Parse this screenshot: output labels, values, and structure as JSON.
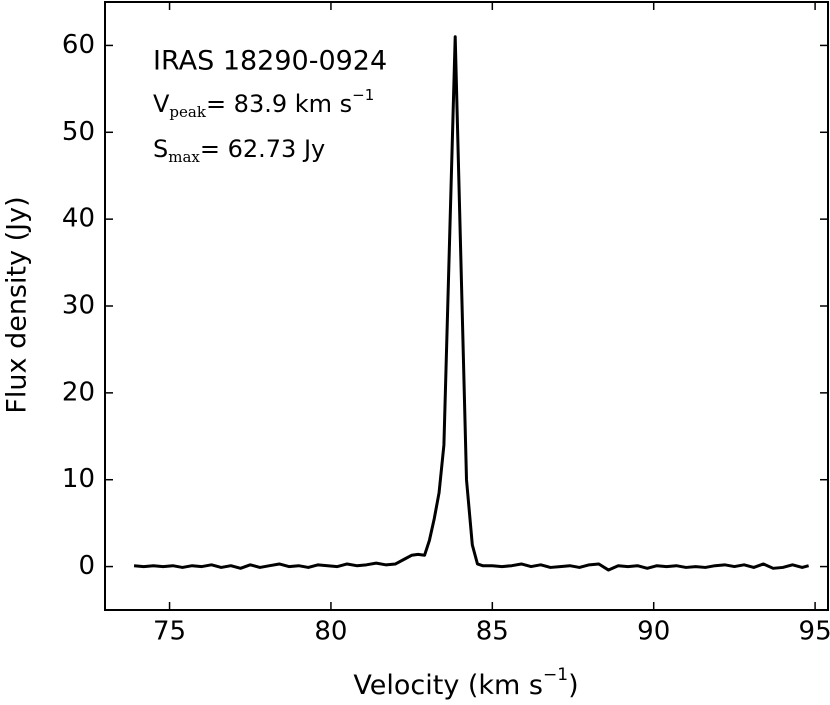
{
  "chart_data": {
    "type": "line",
    "annotations": {
      "source": "IRAS 18290-0924",
      "vpeak": {
        "symbol": "V",
        "sub": "peak",
        "text": "= 83.9 km s",
        "sup": "−1"
      },
      "smax": {
        "symbol": "S",
        "sub": "max",
        "text": "= 62.73 Jy"
      }
    },
    "xlabel": {
      "text": "Velocity (km s",
      "sup": "−1",
      "end": ")"
    },
    "ylabel": "Flux density (Jy)",
    "xlim": [
      73,
      95.4
    ],
    "ylim": [
      -5,
      65
    ],
    "xticks": [
      75,
      80,
      85,
      90,
      95
    ],
    "yticks": [
      0,
      10,
      20,
      30,
      40,
      50,
      60
    ],
    "grid": false,
    "series": [
      {
        "color": "#000000",
        "x": [
          73.9,
          74.2,
          74.5,
          74.8,
          75.1,
          75.4,
          75.7,
          76.0,
          76.3,
          76.6,
          76.9,
          77.2,
          77.5,
          77.8,
          78.1,
          78.4,
          78.7,
          79.0,
          79.3,
          79.6,
          79.9,
          80.2,
          80.5,
          80.8,
          81.1,
          81.4,
          81.7,
          82.0,
          82.3,
          82.5,
          82.7,
          82.9,
          83.05,
          83.2,
          83.35,
          83.5,
          83.85,
          84.2,
          84.38,
          84.54,
          84.7,
          85.0,
          85.3,
          85.6,
          85.9,
          86.2,
          86.5,
          86.8,
          87.1,
          87.4,
          87.7,
          88.0,
          88.3,
          88.6,
          88.9,
          89.2,
          89.5,
          89.8,
          90.1,
          90.4,
          90.7,
          91.0,
          91.3,
          91.6,
          91.9,
          92.2,
          92.5,
          92.8,
          93.1,
          93.4,
          93.7,
          94.0,
          94.3,
          94.6,
          94.8
        ],
        "values": [
          0.1,
          0.0,
          0.1,
          0.0,
          0.1,
          -0.1,
          0.1,
          0.0,
          0.2,
          -0.1,
          0.1,
          -0.2,
          0.2,
          -0.1,
          0.1,
          0.3,
          0.0,
          0.1,
          -0.1,
          0.2,
          0.1,
          0.0,
          0.3,
          0.1,
          0.2,
          0.4,
          0.2,
          0.3,
          0.9,
          1.3,
          1.4,
          1.3,
          3.0,
          5.5,
          8.5,
          14.0,
          61.0,
          10.0,
          2.5,
          0.3,
          0.1,
          0.1,
          0.0,
          0.1,
          0.3,
          0.0,
          0.2,
          -0.1,
          0.0,
          0.1,
          -0.1,
          0.2,
          0.3,
          -0.4,
          0.1,
          0.0,
          0.1,
          -0.2,
          0.1,
          0.0,
          0.1,
          -0.1,
          0.0,
          -0.1,
          0.1,
          0.2,
          0.0,
          0.2,
          -0.1,
          0.3,
          -0.2,
          -0.1,
          0.2,
          -0.1,
          0.1
        ]
      }
    ]
  }
}
